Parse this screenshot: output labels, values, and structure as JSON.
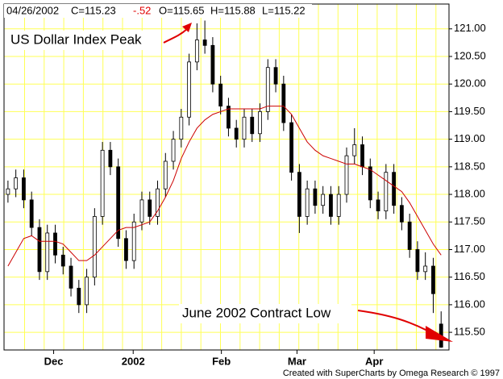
{
  "chart_data": {
    "type": "candlestick",
    "header": {
      "date": "04/26/2002",
      "close": "C=115.23",
      "change": "-.52",
      "open": "O=115.65",
      "high": "H=115.88",
      "low": "L=115.22"
    },
    "annotations": [
      "US Dollar Index Peak",
      "June 2002 Contract Low"
    ],
    "footer": "Created with SuperCharts by Omega Research © 1997",
    "up_color": "#ffffff",
    "down_color": "#000000",
    "grid_color": "#ffff55",
    "grid": true,
    "x": [
      0,
      1,
      2,
      3,
      4,
      5,
      6,
      7,
      8,
      9,
      10,
      11,
      12,
      13,
      14,
      15,
      16,
      17,
      18,
      19,
      20,
      21,
      22,
      23,
      24,
      25,
      26,
      27,
      28,
      29,
      30,
      31,
      32,
      33,
      34,
      35,
      36,
      37,
      38,
      39,
      40,
      41,
      42,
      43,
      44,
      45,
      46,
      47,
      48,
      49,
      50,
      51,
      52,
      53,
      54,
      55
    ],
    "open": [
      118.0,
      118.1,
      118.3,
      117.9,
      117.4,
      116.6,
      117.3,
      116.9,
      116.7,
      116.3,
      116.0,
      116.5,
      117.6,
      118.8,
      118.5,
      117.2,
      116.8,
      117.5,
      117.9,
      117.6,
      118.1,
      118.6,
      119.0,
      119.4,
      120.4,
      120.8,
      120.7,
      120.0,
      119.6,
      119.2,
      119.0,
      119.4,
      119.1,
      119.5,
      120.3,
      120.0,
      119.3,
      118.4,
      117.6,
      118.1,
      117.8,
      118.0,
      117.6,
      118.0,
      118.7,
      118.9,
      118.5,
      117.9,
      117.7,
      118.4,
      117.8,
      117.5,
      117.0,
      116.6,
      116.7,
      115.65
    ],
    "high": [
      118.25,
      118.45,
      118.45,
      118.05,
      117.55,
      117.45,
      117.45,
      117.05,
      116.85,
      116.45,
      116.65,
      117.75,
      118.95,
      118.95,
      118.65,
      117.35,
      117.65,
      118.05,
      118.05,
      118.25,
      118.75,
      119.15,
      119.55,
      120.55,
      121.1,
      121.15,
      120.85,
      120.15,
      119.75,
      119.35,
      119.55,
      119.55,
      119.65,
      120.45,
      120.45,
      120.15,
      119.45,
      118.55,
      118.25,
      118.25,
      118.15,
      118.15,
      118.15,
      118.85,
      119.2,
      119.05,
      118.65,
      118.05,
      118.55,
      118.55,
      117.95,
      117.65,
      117.15,
      116.95,
      116.85,
      115.88
    ],
    "low": [
      117.85,
      117.95,
      117.75,
      117.25,
      116.45,
      116.45,
      116.75,
      116.55,
      116.15,
      115.85,
      115.85,
      116.35,
      117.45,
      118.35,
      117.05,
      116.65,
      116.65,
      117.35,
      117.45,
      117.45,
      117.95,
      118.45,
      118.85,
      119.25,
      120.25,
      120.55,
      119.85,
      119.45,
      119.05,
      118.85,
      118.85,
      118.95,
      118.95,
      119.35,
      119.85,
      119.15,
      118.25,
      117.3,
      117.45,
      117.65,
      117.65,
      117.45,
      117.45,
      117.85,
      118.55,
      118.35,
      117.75,
      117.55,
      117.55,
      117.65,
      117.35,
      116.85,
      116.45,
      116.45,
      115.85,
      115.22
    ],
    "close": [
      118.1,
      118.3,
      117.9,
      117.4,
      116.6,
      117.3,
      116.9,
      116.7,
      116.3,
      116.0,
      116.5,
      117.6,
      118.8,
      118.5,
      117.2,
      116.8,
      117.5,
      117.9,
      117.6,
      118.1,
      118.6,
      119.0,
      119.4,
      120.4,
      120.8,
      120.7,
      120.0,
      119.6,
      119.2,
      119.0,
      119.4,
      119.1,
      119.5,
      120.3,
      120.0,
      119.3,
      118.4,
      117.6,
      118.1,
      117.8,
      118.0,
      117.6,
      118.0,
      118.7,
      118.9,
      118.5,
      117.9,
      117.7,
      118.4,
      117.8,
      117.5,
      117.0,
      116.6,
      116.7,
      116.2,
      115.23
    ],
    "series": [
      {
        "color": "#cc0000",
        "values": [
          116.7,
          116.95,
          117.2,
          117.25,
          117.15,
          117.15,
          117.15,
          117.1,
          116.95,
          116.8,
          116.8,
          116.9,
          117.05,
          117.2,
          117.35,
          117.4,
          117.4,
          117.45,
          117.5,
          117.7,
          117.95,
          118.25,
          118.65,
          118.95,
          119.2,
          119.35,
          119.45,
          119.5,
          119.55,
          119.55,
          119.55,
          119.55,
          119.55,
          119.6,
          119.6,
          119.6,
          119.45,
          119.2,
          118.95,
          118.8,
          118.7,
          118.65,
          118.6,
          118.55,
          118.55,
          118.5,
          118.45,
          118.35,
          118.25,
          118.15,
          118.05,
          117.85,
          117.6,
          117.35,
          117.1,
          116.9
        ]
      }
    ],
    "xlim": [
      -0.5,
      56
    ],
    "xticks": [
      {
        "value": 5.8,
        "label": "Dec"
      },
      {
        "value": 15.9,
        "label": "2002"
      },
      {
        "value": 27.1,
        "label": "Feb"
      },
      {
        "value": 36.7,
        "label": "Mar"
      },
      {
        "value": 46.5,
        "label": "Apr"
      }
    ],
    "ylim": [
      115.18,
      121.45
    ],
    "yticks": [
      {
        "value": 115.5,
        "label": "115.50"
      },
      {
        "value": 116,
        "label": "116.00"
      },
      {
        "value": 116.5,
        "label": "116.50"
      },
      {
        "value": 117,
        "label": "117.00"
      },
      {
        "value": 117.5,
        "label": "117.50"
      },
      {
        "value": 118,
        "label": "118.00"
      },
      {
        "value": 118.5,
        "label": "118.50"
      },
      {
        "value": 119,
        "label": "119.00"
      },
      {
        "value": 119.5,
        "label": "119.50"
      },
      {
        "value": 120,
        "label": "120.00"
      },
      {
        "value": 120.5,
        "label": "120.50"
      },
      {
        "value": 121,
        "label": "121.00"
      }
    ]
  }
}
